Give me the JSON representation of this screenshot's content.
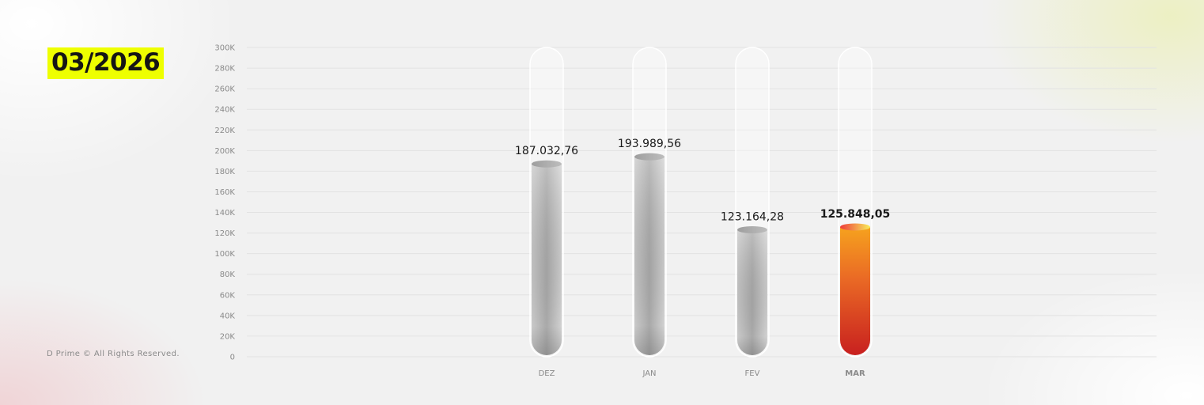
{
  "header": {
    "period": "03/2026"
  },
  "footer": {
    "copyright": "D Prime © All Rights Reserved."
  },
  "chart_data": {
    "type": "bar",
    "title": "",
    "xlabel": "",
    "ylabel": "",
    "ylim": [
      0,
      300000
    ],
    "yticks": [
      "0",
      "20K",
      "40K",
      "60K",
      "80K",
      "100K",
      "120K",
      "140K",
      "160K",
      "180K",
      "200K",
      "220K",
      "240K",
      "260K",
      "280K",
      "300K"
    ],
    "categories": [
      "DEZ",
      "JAN",
      "FEV",
      "MAR"
    ],
    "values": [
      187032.76,
      193989.56,
      123164.28,
      125848.05
    ],
    "data_labels": [
      "187.032,76",
      "193.989,56",
      "123.164,28",
      "125.848,05"
    ],
    "highlight_index": 3,
    "grid": true,
    "colors": {
      "normal": "#b8b8b8",
      "highlight": "#e8332a",
      "highlight_label": "#ee1c24",
      "grid": "#e2e2e2"
    }
  }
}
